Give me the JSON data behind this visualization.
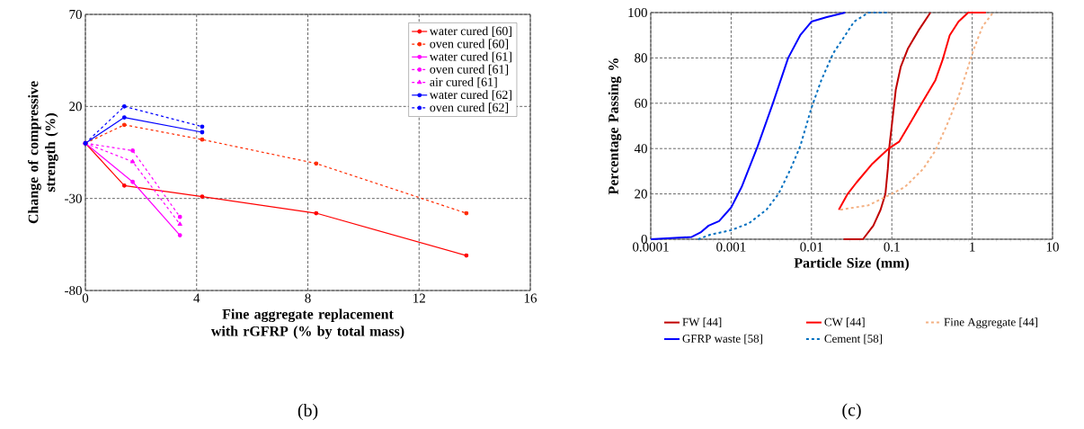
{
  "chart_data": [
    {
      "type": "line",
      "xlabel": "Fine aggregate replacement with rGFRP (% by total mass)",
      "ylabel": "Change of compressive strength (%)",
      "xlim": [
        0,
        16
      ],
      "xticks": [
        0,
        4,
        8,
        12,
        16
      ],
      "ylim": [
        -80,
        70
      ],
      "yticks": [
        -80,
        -30,
        20,
        70
      ],
      "grid": true,
      "legend": "top right",
      "annotations": [
        "(b)"
      ],
      "series": [
        {
          "name": "water cured [60]",
          "color": "#ff0000",
          "line_style": "solid",
          "marker": "circle",
          "x": [
            0,
            1.4,
            4.2,
            8.3,
            13.7
          ],
          "values": [
            0,
            -23,
            -29,
            -38,
            -61
          ]
        },
        {
          "name": "oven cured [60]",
          "color": "#ff2a00",
          "line_style": "dashed",
          "marker": "circle",
          "x": [
            0,
            1.4,
            4.2,
            8.3,
            13.7
          ],
          "values": [
            0,
            10,
            2,
            -11,
            -38
          ]
        },
        {
          "name": "water cured  [61]",
          "color": "#ff00ff",
          "line_style": "solid",
          "marker": "circle",
          "x": [
            0,
            1.7,
            3.4
          ],
          "values": [
            0,
            -21,
            -50
          ]
        },
        {
          "name": "oven cured  [61]",
          "color": "#ff00ff",
          "line_style": "dashed",
          "marker": "circle",
          "x": [
            0,
            1.7,
            3.4
          ],
          "values": [
            0,
            -4,
            -40
          ]
        },
        {
          "name": "air cured  [61]",
          "color": "#ff00ff",
          "line_style": "dashed",
          "marker": "triangle",
          "x": [
            0,
            1.7,
            3.4
          ],
          "values": [
            0,
            -10,
            -44
          ]
        },
        {
          "name": "water cured [62]",
          "color": "#0000ff",
          "line_style": "solid",
          "marker": "circle",
          "x": [
            0,
            1.4,
            4.2
          ],
          "values": [
            0,
            14,
            6
          ]
        },
        {
          "name": "oven cured [62]",
          "color": "#0000ff",
          "line_style": "dashed",
          "marker": "circle",
          "x": [
            0,
            1.4,
            4.2
          ],
          "values": [
            0,
            20,
            9
          ]
        }
      ]
    },
    {
      "type": "line",
      "xlabel": "Particle Size (mm)",
      "ylabel": "Percentage Passing %",
      "log": "x",
      "xlim": [
        0.0001,
        10
      ],
      "xticks": [
        0.0001,
        0.001,
        0.01,
        0.1,
        1,
        10
      ],
      "ylim": [
        0,
        100
      ],
      "yticks": [
        0,
        20,
        40,
        60,
        80,
        100
      ],
      "grid": true,
      "legend": "bottom",
      "annotations": [
        "(c)"
      ],
      "series": [
        {
          "name": "FW [44]",
          "color": "#c00000",
          "line_style": "solid",
          "marker": "none",
          "x": [
            0.0251,
            0.0437,
            0.0589,
            0.0724,
            0.0832,
            0.0891,
            0.0933,
            0.102,
            0.112,
            0.129,
            0.158,
            0.214,
            0.302
          ],
          "values": [
            0,
            0,
            6,
            13,
            20,
            31,
            41,
            53,
            66,
            76,
            84,
            92,
            100
          ]
        },
        {
          "name": "CW [44]",
          "color": "#ff0000",
          "line_style": "solid",
          "marker": "none",
          "x": [
            0.0219,
            0.0282,
            0.0363,
            0.0562,
            0.0912,
            0.123,
            0.174,
            0.245,
            0.347,
            0.427,
            0.525,
            0.676,
            0.891,
            1.48
          ],
          "values": [
            13,
            20,
            25,
            33,
            40,
            43,
            52,
            61,
            70,
            79,
            90,
            96,
            100,
            100
          ]
        },
        {
          "name": "Fine Aggregate [44]",
          "color": "#f4b183",
          "line_style": "dashed",
          "marker": "none",
          "x": [
            0.0229,
            0.0513,
            0.0871,
            0.145,
            0.245,
            0.347,
            0.479,
            0.676,
            0.891,
            1.05,
            1.35,
            1.82
          ],
          "values": [
            13,
            15,
            19,
            23,
            31,
            39,
            50,
            63,
            76,
            84,
            94,
            100
          ]
        },
        {
          "name": "GFRP waste [58]",
          "color": "#0000ff",
          "line_style": "solid",
          "marker": "none",
          "x": [
            0.0001,
            0.000324,
            0.000417,
            0.000525,
            0.000708,
            0.001,
            0.00135,
            0.00214,
            0.00331,
            0.00513,
            0.00724,
            0.01,
            0.0155,
            0.0263
          ],
          "values": [
            0,
            1,
            3,
            6,
            8,
            14,
            23,
            41,
            60,
            80,
            90,
            96,
            98,
            100
          ]
        },
        {
          "name": "Cement [58]",
          "color": "#0070c0",
          "line_style": "dashed",
          "marker": "none",
          "x": [
            0.000389,
            0.00055,
            0.001,
            0.00166,
            0.00275,
            0.00389,
            0.0055,
            0.00724,
            0.01,
            0.0132,
            0.0186,
            0.0263,
            0.0339,
            0.0513,
            0.0933
          ],
          "values": [
            0,
            2,
            4,
            7,
            13,
            20,
            31,
            41,
            58,
            70,
            82,
            90,
            96,
            100,
            100
          ]
        }
      ]
    }
  ]
}
